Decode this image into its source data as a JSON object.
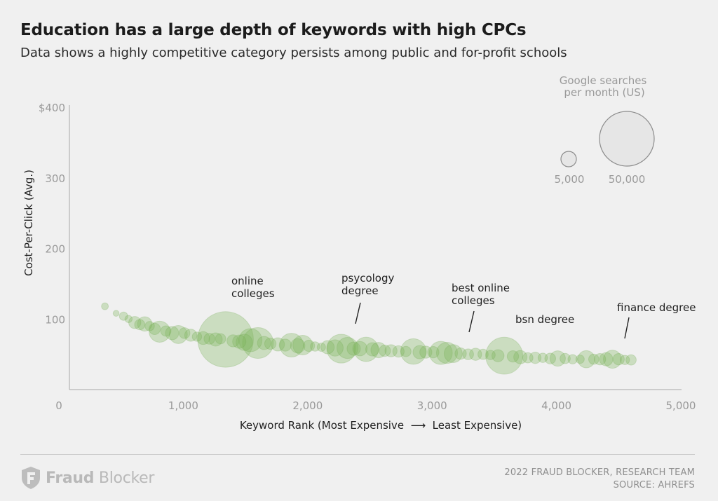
{
  "header": {
    "title": "Education has a large depth of keywords with high CPCs",
    "subtitle": "Data shows a highly competitive category persists among public and for-profit schools"
  },
  "colors": {
    "bubble_fill": "#7cb35b",
    "bubble_stroke": "#6fa84e",
    "axis": "#a8a8a8",
    "legend_bubble_fill": "#e6e6e6",
    "legend_bubble_stroke": "#8c8c8c"
  },
  "chart_data": {
    "type": "scatter",
    "encoding": "bubble",
    "ylabel": "Cost-Per-Click (Avg.)",
    "xlabel": "Keyword Rank (Most Expensive  ⟶  Least Expensive)",
    "xlim": [
      0,
      5000
    ],
    "ylim": [
      0,
      400
    ],
    "x_ticks": [
      "0",
      "1,000",
      "2,000",
      "3,000",
      "4,000",
      "5,000"
    ],
    "x_tick_values": [
      0,
      1000,
      2000,
      3000,
      4000,
      5000
    ],
    "y_ticks": [
      "100",
      "200",
      "300",
      "$400"
    ],
    "y_tick_values": [
      100,
      200,
      300,
      400
    ],
    "grid": false,
    "size_legend": {
      "title": [
        "Google searches",
        "per month (US)"
      ],
      "entries": [
        {
          "label": "5,000",
          "searches": 5000
        },
        {
          "label": "50,000",
          "searches": 50000
        }
      ]
    },
    "points": [
      {
        "x": 370,
        "y": 118,
        "searches": 800
      },
      {
        "x": 460,
        "y": 108,
        "searches": 600
      },
      {
        "x": 520,
        "y": 104,
        "searches": 1200
      },
      {
        "x": 560,
        "y": 100,
        "searches": 900
      },
      {
        "x": 610,
        "y": 95,
        "searches": 2500
      },
      {
        "x": 650,
        "y": 92,
        "searches": 1800
      },
      {
        "x": 690,
        "y": 93,
        "searches": 3500
      },
      {
        "x": 730,
        "y": 90,
        "searches": 1500
      },
      {
        "x": 770,
        "y": 86,
        "searches": 2200
      },
      {
        "x": 810,
        "y": 82,
        "searches": 7500
      },
      {
        "x": 860,
        "y": 83,
        "searches": 1800
      },
      {
        "x": 910,
        "y": 80,
        "searches": 3000
      },
      {
        "x": 960,
        "y": 78,
        "searches": 5500
      },
      {
        "x": 1010,
        "y": 80,
        "searches": 2000
      },
      {
        "x": 1060,
        "y": 77,
        "searches": 2500
      },
      {
        "x": 1110,
        "y": 75,
        "searches": 1500
      },
      {
        "x": 1160,
        "y": 73,
        "searches": 2800
      },
      {
        "x": 1210,
        "y": 72,
        "searches": 2000
      },
      {
        "x": 1260,
        "y": 71,
        "searches": 3000
      },
      {
        "x": 1300,
        "y": 72,
        "searches": 1800
      },
      {
        "x": 1340,
        "y": 71,
        "searches": 52000
      },
      {
        "x": 1400,
        "y": 69,
        "searches": 2500
      },
      {
        "x": 1450,
        "y": 68,
        "searches": 3000
      },
      {
        "x": 1490,
        "y": 67,
        "searches": 4500
      },
      {
        "x": 1540,
        "y": 70,
        "searches": 9000
      },
      {
        "x": 1600,
        "y": 66,
        "searches": 16000
      },
      {
        "x": 1650,
        "y": 66,
        "searches": 3000
      },
      {
        "x": 1700,
        "y": 65,
        "searches": 2200
      },
      {
        "x": 1760,
        "y": 64,
        "searches": 3000
      },
      {
        "x": 1820,
        "y": 63,
        "searches": 2500
      },
      {
        "x": 1870,
        "y": 63,
        "searches": 9500
      },
      {
        "x": 1920,
        "y": 62,
        "searches": 3500
      },
      {
        "x": 1960,
        "y": 63,
        "searches": 6500
      },
      {
        "x": 2010,
        "y": 62,
        "searches": 2200
      },
      {
        "x": 2060,
        "y": 61,
        "searches": 1500
      },
      {
        "x": 2110,
        "y": 60,
        "searches": 1200
      },
      {
        "x": 2160,
        "y": 60,
        "searches": 3000
      },
      {
        "x": 2220,
        "y": 59,
        "searches": 4500
      },
      {
        "x": 2270,
        "y": 58,
        "searches": 14000
      },
      {
        "x": 2320,
        "y": 59,
        "searches": 7500
      },
      {
        "x": 2370,
        "y": 58,
        "searches": 3000
      },
      {
        "x": 2420,
        "y": 58,
        "searches": 3500
      },
      {
        "x": 2470,
        "y": 57,
        "searches": 10000
      },
      {
        "x": 2520,
        "y": 57,
        "searches": 3000
      },
      {
        "x": 2570,
        "y": 56,
        "searches": 4000
      },
      {
        "x": 2620,
        "y": 55,
        "searches": 2200
      },
      {
        "x": 2670,
        "y": 55,
        "searches": 2500
      },
      {
        "x": 2730,
        "y": 54,
        "searches": 2200
      },
      {
        "x": 2790,
        "y": 54,
        "searches": 1800
      },
      {
        "x": 2850,
        "y": 54,
        "searches": 11000
      },
      {
        "x": 2900,
        "y": 53,
        "searches": 3000
      },
      {
        "x": 2950,
        "y": 53,
        "searches": 2500
      },
      {
        "x": 3010,
        "y": 53,
        "searches": 2200
      },
      {
        "x": 3070,
        "y": 52,
        "searches": 9000
      },
      {
        "x": 3120,
        "y": 52,
        "searches": 7500
      },
      {
        "x": 3170,
        "y": 51,
        "searches": 5500
      },
      {
        "x": 3230,
        "y": 51,
        "searches": 2200
      },
      {
        "x": 3290,
        "y": 50,
        "searches": 2000
      },
      {
        "x": 3350,
        "y": 50,
        "searches": 2500
      },
      {
        "x": 3410,
        "y": 50,
        "searches": 1800
      },
      {
        "x": 3470,
        "y": 49,
        "searches": 1500
      },
      {
        "x": 3530,
        "y": 48,
        "searches": 2500
      },
      {
        "x": 3580,
        "y": 48,
        "searches": 23000
      },
      {
        "x": 3650,
        "y": 47,
        "searches": 2200
      },
      {
        "x": 3710,
        "y": 46,
        "searches": 3000
      },
      {
        "x": 3770,
        "y": 45,
        "searches": 1800
      },
      {
        "x": 3830,
        "y": 45,
        "searches": 2200
      },
      {
        "x": 3890,
        "y": 45,
        "searches": 1500
      },
      {
        "x": 3950,
        "y": 44,
        "searches": 2000
      },
      {
        "x": 4010,
        "y": 44,
        "searches": 4000
      },
      {
        "x": 4070,
        "y": 44,
        "searches": 1800
      },
      {
        "x": 4130,
        "y": 43,
        "searches": 1500
      },
      {
        "x": 4190,
        "y": 43,
        "searches": 1200
      },
      {
        "x": 4240,
        "y": 43,
        "searches": 5000
      },
      {
        "x": 4300,
        "y": 43,
        "searches": 1800
      },
      {
        "x": 4350,
        "y": 43,
        "searches": 2200
      },
      {
        "x": 4400,
        "y": 43,
        "searches": 3000
      },
      {
        "x": 4450,
        "y": 43,
        "searches": 5500
      },
      {
        "x": 4500,
        "y": 43,
        "searches": 2200
      },
      {
        "x": 4550,
        "y": 42,
        "searches": 1500
      },
      {
        "x": 4600,
        "y": 42,
        "searches": 1800
      }
    ],
    "annotations": [
      {
        "lines": [
          "online",
          "colleges"
        ]
      },
      {
        "lines": [
          "psycology",
          "degree"
        ]
      },
      {
        "lines": [
          "best online",
          "colleges"
        ]
      },
      {
        "lines": [
          "bsn degree"
        ]
      },
      {
        "lines": [
          "finance degree"
        ]
      }
    ]
  },
  "footer": {
    "logo_bold": "Fraud",
    "logo_rest": " Blocker",
    "credit_line1": "2022 FRAUD BLOCKER, RESEARCH TEAM",
    "credit_line2": "SOURCE: AHREFS"
  }
}
